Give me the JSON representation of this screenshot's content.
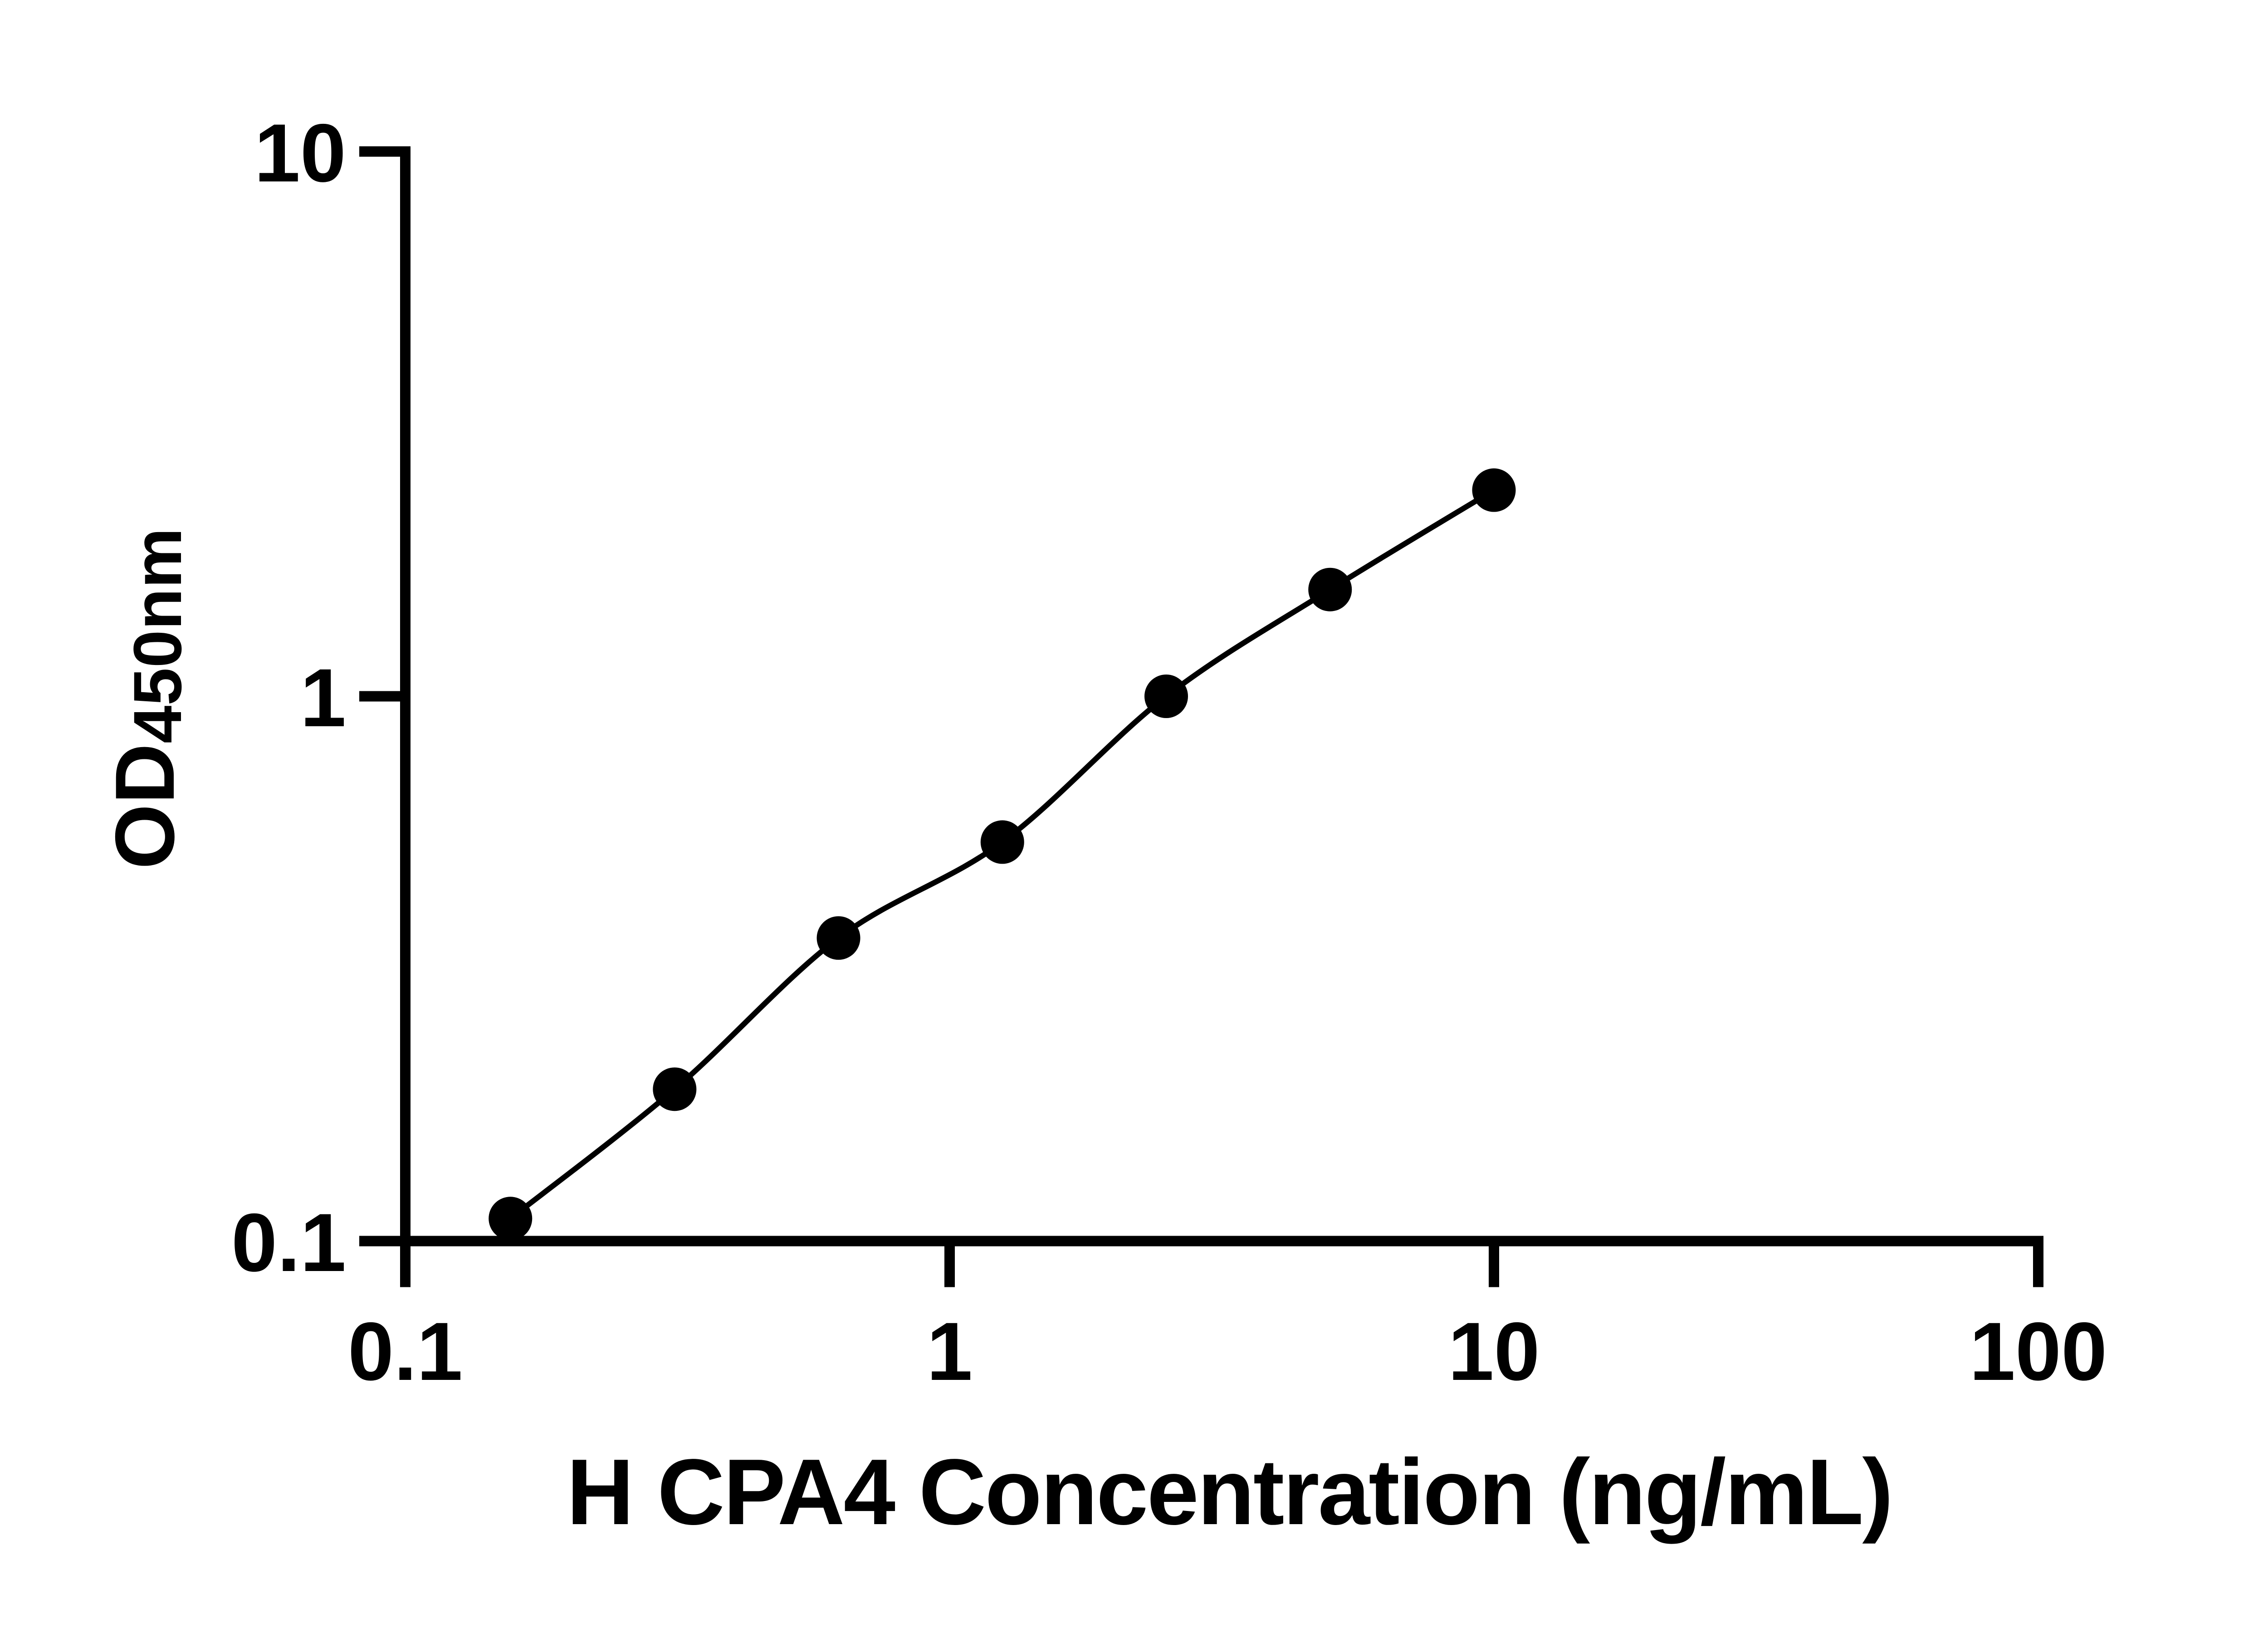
{
  "figure": {
    "background_color": "#ffffff",
    "foreground_color": "#000000"
  },
  "chart_data": {
    "type": "scatter",
    "title": "",
    "xlabel": "H CPA4 Concentration (ng/mL)",
    "ylabel": "OD",
    "ylabel_subscript": "450nm",
    "xscale": "log",
    "yscale": "log",
    "xlim": [
      0.1,
      100
    ],
    "ylim": [
      0.1,
      10
    ],
    "grid": false,
    "legend": false,
    "marker": "filled-circle",
    "marker_color": "#000000",
    "line_color": "#000000",
    "xticks": [
      {
        "value": 0.1,
        "label": "0.1"
      },
      {
        "value": 1,
        "label": "1"
      },
      {
        "value": 10,
        "label": "10"
      },
      {
        "value": 100,
        "label": "100"
      }
    ],
    "yticks": [
      {
        "value": 0.1,
        "label": "0.1"
      },
      {
        "value": 1,
        "label": "1"
      },
      {
        "value": 10,
        "label": "10"
      }
    ],
    "points": [
      {
        "x": 0.156,
        "y": 0.11
      },
      {
        "x": 0.3125,
        "y": 0.19
      },
      {
        "x": 0.625,
        "y": 0.36
      },
      {
        "x": 1.25,
        "y": 0.54
      },
      {
        "x": 2.5,
        "y": 1.0
      },
      {
        "x": 5,
        "y": 1.57
      },
      {
        "x": 10,
        "y": 2.39
      }
    ]
  }
}
